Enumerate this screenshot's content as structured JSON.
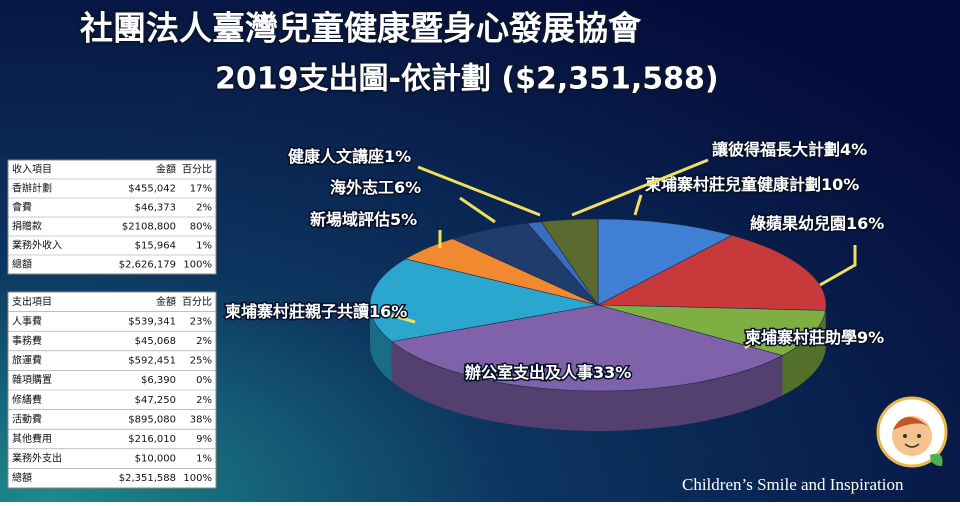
{
  "chart_data": {
    "type": "pie",
    "title": "社團法人臺灣兒童健康暨身心發展協會",
    "subtitle": "2019支出圖-依計劃 ($2,351,588)",
    "categories": [
      "柬埔寨村莊兒童健康計劃",
      "綠蘋果幼兒園",
      "柬埔寨村莊助學",
      "辦公室支出及人事",
      "柬埔寨村莊親子共讀",
      "新場域評估",
      "海外志工",
      "健康人文講座",
      "讓彼得福長大計劃"
    ],
    "values": [
      10,
      16,
      9,
      33,
      16,
      5,
      6,
      1,
      4
    ],
    "value_labels": [
      "10%",
      "16%",
      "9%",
      "33%",
      "16%",
      "5%",
      "6%",
      "1%",
      "4%"
    ],
    "colors": [
      "#3f7fd4",
      "#c8393b",
      "#7fae42",
      "#8062aa",
      "#2aa6cf",
      "#f0892f",
      "#1f3d6c",
      "#3a6cc0",
      "#5b6a2e"
    ]
  },
  "income_table": {
    "columns": [
      "收入項目",
      "金額",
      "百分比"
    ],
    "rows": [
      [
        "香辦計劃",
        "$455,042",
        "17%"
      ],
      [
        "會費",
        "$46,373",
        "2%"
      ],
      [
        "捐贈款",
        "$2108,800",
        "80%"
      ],
      [
        "業務外收入",
        "$15,964",
        "1%"
      ],
      [
        "總額",
        "$2,626,179",
        "100%"
      ]
    ]
  },
  "expense_table": {
    "columns": [
      "支出項目",
      "金額",
      "百分比"
    ],
    "rows": [
      [
        "人事費",
        "$539,341",
        "23%"
      ],
      [
        "事務費",
        "$45,068",
        "2%"
      ],
      [
        "旅運費",
        "$592,451",
        "25%"
      ],
      [
        "雜項購置",
        "$6,390",
        "0%"
      ],
      [
        "修繕費",
        "$47,250",
        "2%"
      ],
      [
        "活動費",
        "$895,080",
        "38%"
      ],
      [
        "其他費用",
        "$216,010",
        "9%"
      ],
      [
        "業務外支出",
        "$10,000",
        "1%"
      ],
      [
        "總額",
        "$2,351,588",
        "100%"
      ]
    ]
  },
  "footer": "Children’s Smile and Inspiration"
}
